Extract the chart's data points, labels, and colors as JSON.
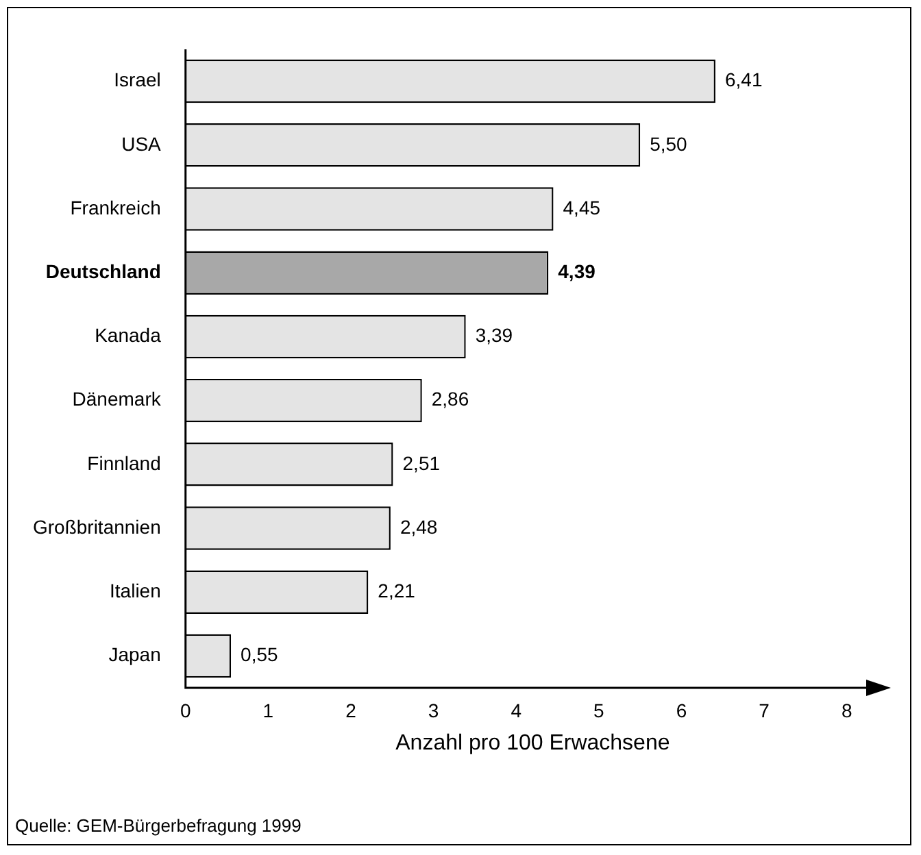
{
  "chart_data": {
    "type": "bar",
    "orientation": "horizontal",
    "xlabel": "Anzahl pro 100 Erwachsene",
    "categories": [
      "Israel",
      "USA",
      "Frankreich",
      "Deutschland",
      "Kanada",
      "Dänemark",
      "Finnland",
      "Großbritannien",
      "Italien",
      "Japan"
    ],
    "values": [
      6.41,
      5.5,
      4.45,
      4.39,
      3.39,
      2.86,
      2.51,
      2.48,
      2.21,
      0.55
    ],
    "colors": [
      "#e4e4e4",
      "#e4e4e4",
      "#e4e4e4",
      "#a8a8a8",
      "#e4e4e4",
      "#e4e4e4",
      "#e4e4e4",
      "#e4e4e4",
      "#e4e4e4",
      "#e4e4e4"
    ],
    "value_labels": [
      "6,41",
      "5,50",
      "4,45",
      "4,39",
      "3,39",
      "2,86",
      "2,51",
      "2,48",
      "2,21",
      "0,55"
    ],
    "xlim": [
      0,
      8.4
    ],
    "xticks": [
      0,
      1,
      2,
      3,
      4,
      5,
      6,
      7,
      8
    ],
    "grid": false,
    "legend": false,
    "annotations": [
      "Quelle: GEM-Bürgerbefragung 1999"
    ]
  }
}
